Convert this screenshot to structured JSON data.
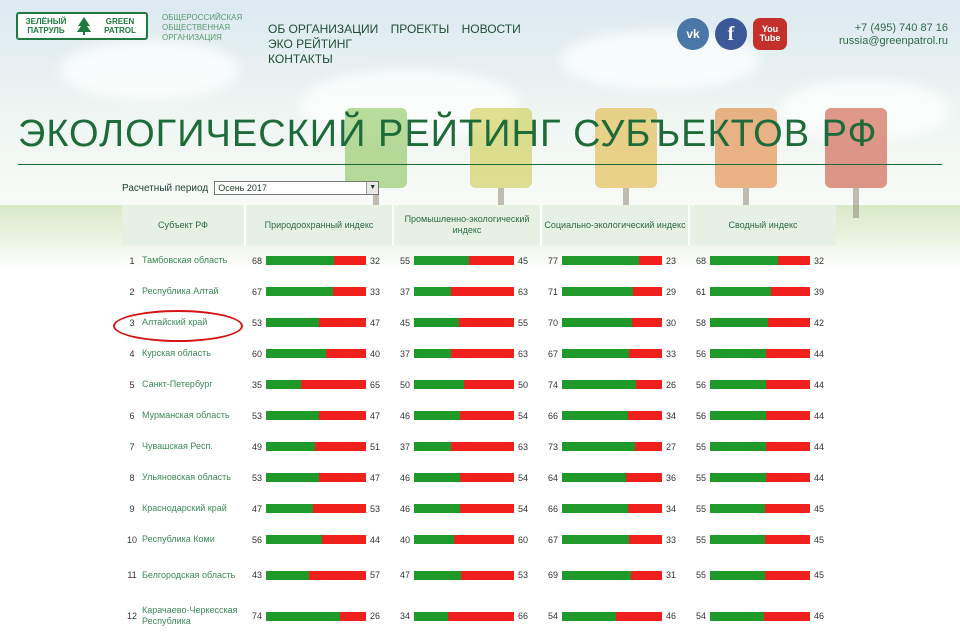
{
  "header": {
    "logo_ru": "ЗЕЛЁНЫЙ ПАТРУЛЬ",
    "logo_en": "GREEN PATROL",
    "org_text": "ОБЩЕРОССИЙСКАЯ ОБЩЕСТВЕННАЯ ОРГАНИЗАЦИЯ",
    "nav": [
      "ОБ ОРГАНИЗАЦИИ",
      "ПРОЕКТЫ",
      "НОВОСТИ",
      "ЭКО РЕЙТИНГ",
      "КОНТАКТЫ"
    ],
    "social": {
      "vk": "vk",
      "fb": "f",
      "yt": "You Tube"
    },
    "phone": "+7 (495) 740 87 16",
    "email": "russia@greenpatrol.ru"
  },
  "page_title": "ЭКОЛОГИЧЕСКИЙ РЕЙТИНГ СУБЪЕКТОВ РФ",
  "period": {
    "label": "Расчетный период",
    "value": "Осень 2017"
  },
  "table": {
    "columns": [
      "Субъект РФ",
      "Природоохранный индекс",
      "Промышленно-экологический индекс",
      "Социально-экологический индекс",
      "Сводный индекс"
    ],
    "colors": {
      "good": "#1f9a2a",
      "bad": "#f0201c"
    },
    "rows": [
      {
        "n": "1",
        "name": "Тамбовская область",
        "v": [
          [
            68,
            32
          ],
          [
            55,
            45
          ],
          [
            77,
            23
          ],
          [
            68,
            32
          ]
        ]
      },
      {
        "n": "2",
        "name": "Республика Алтай",
        "v": [
          [
            67,
            33
          ],
          [
            37,
            63
          ],
          [
            71,
            29
          ],
          [
            61,
            39
          ]
        ]
      },
      {
        "n": "3",
        "name": "Алтайский край",
        "v": [
          [
            53,
            47
          ],
          [
            45,
            55
          ],
          [
            70,
            30
          ],
          [
            58,
            42
          ]
        ]
      },
      {
        "n": "4",
        "name": "Курская область",
        "v": [
          [
            60,
            40
          ],
          [
            37,
            63
          ],
          [
            67,
            33
          ],
          [
            56,
            44
          ]
        ]
      },
      {
        "n": "5",
        "name": "Санкт-Петербург",
        "v": [
          [
            35,
            65
          ],
          [
            50,
            50
          ],
          [
            74,
            26
          ],
          [
            56,
            44
          ]
        ]
      },
      {
        "n": "6",
        "name": "Мурманская область",
        "v": [
          [
            53,
            47
          ],
          [
            46,
            54
          ],
          [
            66,
            34
          ],
          [
            56,
            44
          ]
        ]
      },
      {
        "n": "7",
        "name": "Чувашская Респ.",
        "v": [
          [
            49,
            51
          ],
          [
            37,
            63
          ],
          [
            73,
            27
          ],
          [
            55,
            44
          ]
        ]
      },
      {
        "n": "8",
        "name": "Ульяновская область",
        "v": [
          [
            53,
            47
          ],
          [
            46,
            54
          ],
          [
            64,
            36
          ],
          [
            55,
            44
          ]
        ]
      },
      {
        "n": "9",
        "name": "Краснодарский край",
        "v": [
          [
            47,
            53
          ],
          [
            46,
            54
          ],
          [
            66,
            34
          ],
          [
            55,
            45
          ]
        ]
      },
      {
        "n": "10",
        "name": "Республика Коми",
        "v": [
          [
            56,
            44
          ],
          [
            40,
            60
          ],
          [
            67,
            33
          ],
          [
            55,
            45
          ]
        ]
      },
      {
        "n": "11",
        "name": "Белгородская область",
        "v": [
          [
            43,
            57
          ],
          [
            47,
            53
          ],
          [
            69,
            31
          ],
          [
            55,
            45
          ]
        ]
      },
      {
        "n": "12",
        "name": "Карачаево-Черкесская Республика",
        "v": [
          [
            74,
            26
          ],
          [
            34,
            66
          ],
          [
            54,
            46
          ],
          [
            54,
            46
          ]
        ]
      }
    ]
  }
}
